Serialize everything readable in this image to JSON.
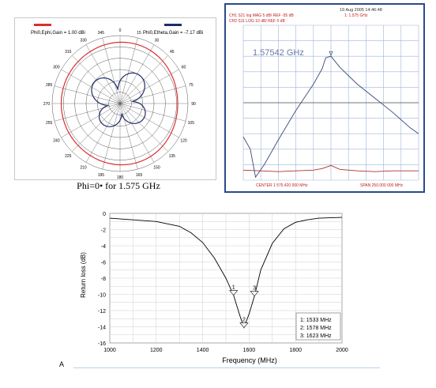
{
  "chart_data": [
    {
      "type": "polar",
      "legend": [
        {
          "name": "Phi0,Ephi,Gain = 1.00 dBi",
          "color": "#d93030"
        },
        {
          "name": "Phi0,Etheta,Gain = -7.17 dBi",
          "color": "#1e2d6b"
        }
      ],
      "angle_labels": [
        "0",
        "15",
        "30",
        "45",
        "60",
        "75",
        "90",
        "105",
        "120",
        "135",
        "150",
        "165",
        "180",
        "195",
        "210",
        "225",
        "240",
        "255",
        "270",
        "285",
        "300",
        "315",
        "330",
        "345"
      ],
      "series": [
        {
          "name": "Phi0,Ephi,Gain = 1.00 dBi",
          "shape": "near-circular",
          "relative_radius": 0.88
        },
        {
          "name": "Phi0,Etheta,Gain = -7.17 dBi",
          "shape": "four-lobe",
          "relative_radius": 0.45
        }
      ],
      "caption": "Phi=0•  for 1.575 GHz"
    },
    {
      "type": "line",
      "header": {
        "line1": "CH1  S21  log MAG   5 dB/ REF -55 dB",
        "line2": "CH2  S11  LOG   10 dB/ REF 0 dB",
        "date": "19 Aug 2005  14:46:48",
        "marker_readout": "1: 1.575 GHz"
      },
      "marker_label": "1.57542 GHz",
      "footer_left": "CENTER 1 575.420 000 MHz",
      "footer_right": "SPAN 250.000 000 MHz",
      "trace1": [
        [
          0,
          0.72
        ],
        [
          0.04,
          0.8
        ],
        [
          0.07,
          0.98
        ],
        [
          0.12,
          0.9
        ],
        [
          0.2,
          0.74
        ],
        [
          0.3,
          0.55
        ],
        [
          0.4,
          0.38
        ],
        [
          0.45,
          0.28
        ],
        [
          0.47,
          0.21
        ],
        [
          0.5,
          0.2
        ],
        [
          0.55,
          0.27
        ],
        [
          0.65,
          0.38
        ],
        [
          0.75,
          0.47
        ],
        [
          0.85,
          0.56
        ],
        [
          0.95,
          0.66
        ],
        [
          1,
          0.7
        ]
      ],
      "trace2": [
        [
          0,
          0.935
        ],
        [
          0.1,
          0.94
        ],
        [
          0.2,
          0.945
        ],
        [
          0.3,
          0.94
        ],
        [
          0.4,
          0.935
        ],
        [
          0.45,
          0.925
        ],
        [
          0.5,
          0.905
        ],
        [
          0.55,
          0.93
        ],
        [
          0.65,
          0.94
        ],
        [
          0.75,
          0.945
        ],
        [
          0.85,
          0.94
        ],
        [
          1,
          0.94
        ]
      ]
    },
    {
      "type": "line",
      "xlabel": "Frequency (MHz)",
      "ylabel": "Return loss (dB)",
      "xlim": [
        1000,
        2000
      ],
      "ylim": [
        -16,
        0
      ],
      "xticks": [
        "1000",
        "1200",
        "1400",
        "1600",
        "1800",
        "2000"
      ],
      "yticks": [
        "0",
        "-2",
        "-4",
        "-6",
        "-8",
        "-10",
        "-12",
        "-14",
        "-16"
      ],
      "grid": true,
      "series": [
        {
          "name": "Return loss",
          "x": [
            1000,
            1100,
            1200,
            1300,
            1350,
            1400,
            1450,
            1500,
            1533,
            1560,
            1578,
            1600,
            1623,
            1650,
            1700,
            1750,
            1800,
            1850,
            1900,
            1950,
            2000
          ],
          "y": [
            -0.6,
            -0.8,
            -1.0,
            -1.6,
            -2.4,
            -3.6,
            -5.5,
            -8.0,
            -10.1,
            -12.6,
            -14.1,
            -12.4,
            -10.2,
            -7.0,
            -3.7,
            -1.9,
            -1.1,
            -0.8,
            -0.6,
            -0.55,
            -0.5
          ]
        }
      ],
      "markers": [
        {
          "label": "1",
          "x": 1533,
          "y": -10.1
        },
        {
          "label": "2",
          "x": 1578,
          "y": -14.1
        },
        {
          "label": "3",
          "x": 1623,
          "y": -10.2
        }
      ],
      "marker_legend": [
        "1: 1533 MHz",
        "2: 1578 MHz",
        "3: 1623 MHz"
      ]
    }
  ],
  "colors": {
    "ephi": "#d93030",
    "etheta": "#1e2d6b",
    "na_trace1": "#3a4a7a",
    "na_trace2": "#b03030",
    "na_text": "#c02020",
    "na_grid": "#9fb4d8"
  },
  "footer_mark": "A"
}
